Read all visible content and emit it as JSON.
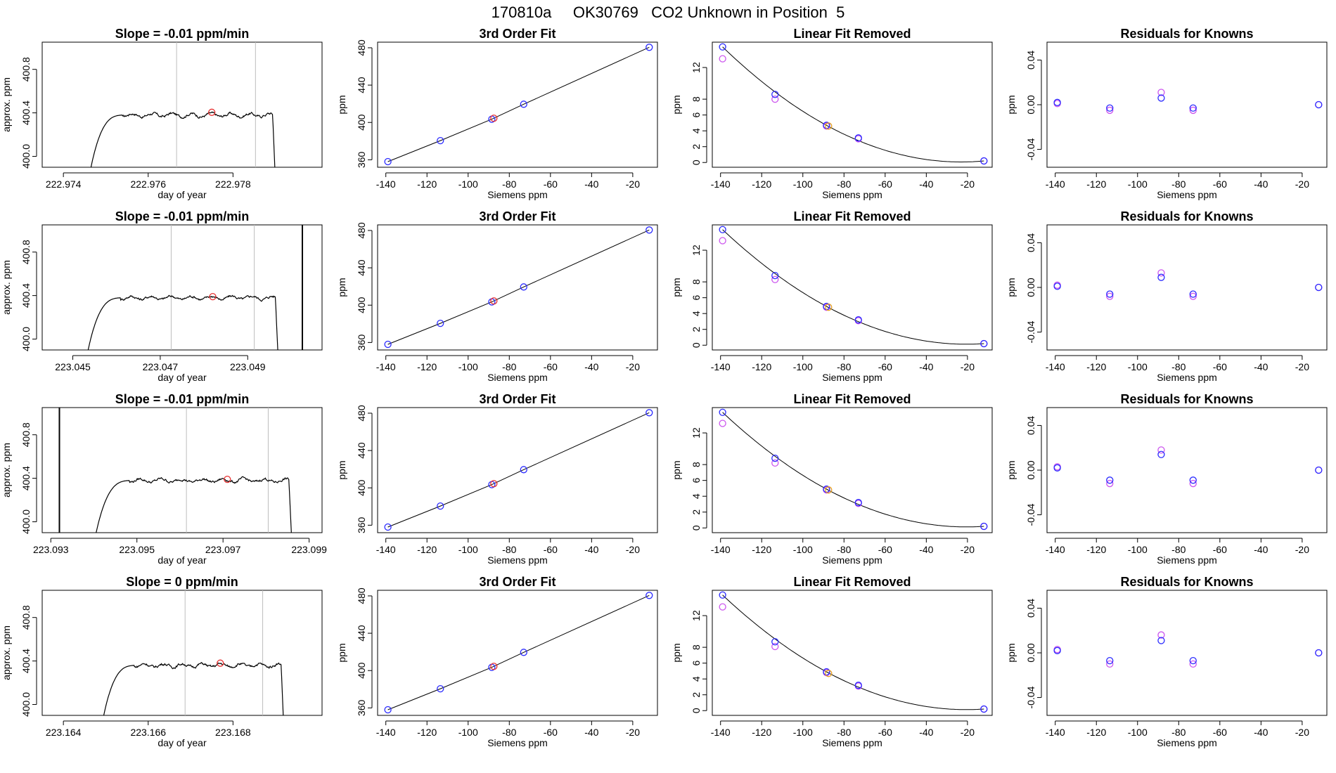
{
  "page": {
    "title": "170810a     OK30769   CO2 Unknown in Position  5"
  },
  "colors": {
    "trace": "#000000",
    "fit_line": "#000000",
    "gray_marker": "#bdbdbd",
    "known_blue": "#2b2bff",
    "known_magenta": "#cc55ee",
    "unknown_red": "#e83030",
    "unknown_orange": "#e8a020"
  },
  "rows": [
    {
      "trace": {
        "title": "Slope =  -0.01  ppm/min",
        "xlabel": "day of year",
        "ylabel": "approx. ppm",
        "xlim": [
          222.9735,
          222.9801
        ],
        "ylim": [
          399.9,
          401.05
        ],
        "xticks": [
          222.974,
          222.976,
          222.978
        ],
        "xtick_labels": [
          "222.974",
          "222.976",
          "222.978"
        ],
        "yticks": [
          400.0,
          400.4,
          400.8
        ],
        "ytick_labels": [
          "400.0",
          "400.4",
          "400.8"
        ],
        "start": 222.9746,
        "end": 222.979,
        "plateau": 400.38,
        "gray_lines": [
          222.97667,
          222.97853
        ],
        "black_lines": [],
        "marker": {
          "x": 222.9775,
          "y": 400.405
        }
      },
      "fit": {
        "title": "3rd Order Fit",
        "xlabel": "Siemens ppm",
        "ylabel": "ppm",
        "xlim": [
          -144,
          -8
        ],
        "ylim": [
          352,
          486
        ],
        "xticks": [
          -140,
          -120,
          -100,
          -80,
          -60,
          -40,
          -20
        ],
        "xtick_labels": [
          "-140",
          "-120",
          "-100",
          "-80",
          "-60",
          "-40",
          "-20"
        ],
        "yticks": [
          360,
          400,
          440,
          480
        ],
        "ytick_labels": [
          "360",
          "400",
          "440",
          "480"
        ],
        "known_x": [
          -139,
          -113.5,
          -88.5,
          -73,
          -12
        ],
        "known_y": [
          358,
          380.5,
          403.5,
          419.5,
          480.5
        ],
        "unknown": {
          "x": -87.5,
          "y": 404.5
        }
      },
      "lin": {
        "title": "Linear Fit Removed",
        "xlabel": "Siemens ppm",
        "ylabel": "ppm",
        "xlim": [
          -144,
          -8
        ],
        "ylim": [
          -0.6,
          15.2
        ],
        "xticks": [
          -140,
          -120,
          -100,
          -80,
          -60,
          -40,
          -20
        ],
        "xtick_labels": [
          "-140",
          "-120",
          "-100",
          "-80",
          "-60",
          "-40",
          "-20"
        ],
        "yticks": [
          0,
          2,
          4,
          6,
          8,
          12
        ],
        "ytick_labels": [
          "0",
          "2",
          "4",
          "6",
          "8",
          "12"
        ],
        "known_x": [
          -139,
          -113.5,
          -88.5,
          -73,
          -12
        ],
        "blue_y": [
          14.6,
          8.6,
          4.7,
          3.1,
          0.2
        ],
        "magenta_y": [
          13.1,
          8.0,
          4.6,
          3.0,
          0.2
        ],
        "unknown": {
          "x": -87.5,
          "y": 4.6
        }
      },
      "res": {
        "title": "Residuals for Knowns",
        "xlabel": "Siemens ppm",
        "ylabel": "ppm",
        "xlim": [
          -144,
          -8
        ],
        "ylim": [
          -0.056,
          0.056
        ],
        "xticks": [
          -140,
          -120,
          -100,
          -80,
          -60,
          -40,
          -20
        ],
        "xtick_labels": [
          "-140",
          "-120",
          "-100",
          "-80",
          "-60",
          "-40",
          "-20"
        ],
        "yticks": [
          -0.04,
          0.0,
          0.04
        ],
        "ytick_labels": [
          "-0.04",
          "0.00",
          "0.04"
        ],
        "known_x": [
          -139,
          -113.5,
          -88.5,
          -73,
          -12
        ],
        "blue_y": [
          0.002,
          -0.003,
          0.006,
          -0.003,
          0.0
        ],
        "magenta_y": [
          0.001,
          -0.005,
          0.011,
          -0.005,
          0.0
        ]
      }
    },
    {
      "trace": {
        "title": "Slope =  -0.01  ppm/min",
        "xlabel": "day of year",
        "ylabel": "approx. ppm",
        "xlim": [
          223.0443,
          223.0507
        ],
        "ylim": [
          399.9,
          401.05
        ],
        "xticks": [
          223.045,
          223.047,
          223.049
        ],
        "xtick_labels": [
          "223.045",
          "223.047",
          "223.049"
        ],
        "yticks": [
          400.0,
          400.4,
          400.8
        ],
        "ytick_labels": [
          "400.0",
          "400.4",
          "400.8"
        ],
        "start": 223.0453,
        "end": 223.0497,
        "plateau": 400.38,
        "gray_lines": [
          223.04725,
          223.04915
        ],
        "black_lines": [
          223.05025
        ],
        "marker": {
          "x": 223.0482,
          "y": 400.39
        }
      },
      "fit": {
        "title": "3rd Order Fit",
        "xlabel": "Siemens ppm",
        "ylabel": "ppm",
        "xlim": [
          -144,
          -8
        ],
        "ylim": [
          352,
          486
        ],
        "xticks": [
          -140,
          -120,
          -100,
          -80,
          -60,
          -40,
          -20
        ],
        "xtick_labels": [
          "-140",
          "-120",
          "-100",
          "-80",
          "-60",
          "-40",
          "-20"
        ],
        "yticks": [
          360,
          400,
          440,
          480
        ],
        "ytick_labels": [
          "360",
          "400",
          "440",
          "480"
        ],
        "known_x": [
          -139,
          -113.5,
          -88.5,
          -73,
          -12
        ],
        "known_y": [
          358,
          380.5,
          403.5,
          419.5,
          480.5
        ],
        "unknown": {
          "x": -87.5,
          "y": 404.5
        }
      },
      "lin": {
        "title": "Linear Fit Removed",
        "xlabel": "Siemens ppm",
        "ylabel": "ppm",
        "xlim": [
          -144,
          -8
        ],
        "ylim": [
          -0.6,
          15.2
        ],
        "xticks": [
          -140,
          -120,
          -100,
          -80,
          -60,
          -40,
          -20
        ],
        "xtick_labels": [
          "-140",
          "-120",
          "-100",
          "-80",
          "-60",
          "-40",
          "-20"
        ],
        "yticks": [
          0,
          2,
          4,
          6,
          8,
          12
        ],
        "ytick_labels": [
          "0",
          "2",
          "4",
          "6",
          "8",
          "12"
        ],
        "known_x": [
          -139,
          -113.5,
          -88.5,
          -73,
          -12
        ],
        "blue_y": [
          14.6,
          8.8,
          4.9,
          3.2,
          0.2
        ],
        "magenta_y": [
          13.2,
          8.3,
          4.8,
          3.1,
          0.2
        ],
        "unknown": {
          "x": -87.5,
          "y": 4.8
        }
      },
      "res": {
        "title": "Residuals for Knowns",
        "xlabel": "Siemens ppm",
        "ylabel": "ppm",
        "xlim": [
          -144,
          -8
        ],
        "ylim": [
          -0.056,
          0.056
        ],
        "xticks": [
          -140,
          -120,
          -100,
          -80,
          -60,
          -40,
          -20
        ],
        "xtick_labels": [
          "-140",
          "-120",
          "-100",
          "-80",
          "-60",
          "-40",
          "-20"
        ],
        "yticks": [
          -0.04,
          0.0,
          0.04
        ],
        "ytick_labels": [
          "-0.04",
          "0.00",
          "0.04"
        ],
        "known_x": [
          -139,
          -113.5,
          -88.5,
          -73,
          -12
        ],
        "blue_y": [
          0.001,
          -0.006,
          0.009,
          -0.006,
          0.0
        ],
        "magenta_y": [
          0.002,
          -0.008,
          0.013,
          -0.008,
          0.0
        ]
      }
    },
    {
      "trace": {
        "title": "Slope =  -0.01  ppm/min",
        "xlabel": "day of year",
        "ylabel": "approx. ppm",
        "xlim": [
          223.0928,
          223.0993
        ],
        "ylim": [
          399.9,
          401.05
        ],
        "xticks": [
          223.093,
          223.095,
          223.097,
          223.099
        ],
        "xtick_labels": [
          "223.093",
          "223.095",
          "223.097",
          "223.099"
        ],
        "yticks": [
          400.0,
          400.4,
          400.8
        ],
        "ytick_labels": [
          "400.0",
          "400.4",
          "400.8"
        ],
        "start": 223.094,
        "end": 223.0986,
        "plateau": 400.38,
        "gray_lines": [
          223.09615,
          223.09805
        ],
        "black_lines": [
          223.0932
        ],
        "marker": {
          "x": 223.0971,
          "y": 400.39
        }
      },
      "fit": {
        "title": "3rd Order Fit",
        "xlabel": "Siemens ppm",
        "ylabel": "ppm",
        "xlim": [
          -144,
          -8
        ],
        "ylim": [
          352,
          486
        ],
        "xticks": [
          -140,
          -120,
          -100,
          -80,
          -60,
          -40,
          -20
        ],
        "xtick_labels": [
          "-140",
          "-120",
          "-100",
          "-80",
          "-60",
          "-40",
          "-20"
        ],
        "yticks": [
          360,
          400,
          440,
          480
        ],
        "ytick_labels": [
          "360",
          "400",
          "440",
          "480"
        ],
        "known_x": [
          -139,
          -113.5,
          -88.5,
          -73,
          -12
        ],
        "known_y": [
          358,
          380.5,
          403.5,
          419.5,
          480.5
        ],
        "unknown": {
          "x": -87.5,
          "y": 404.5
        }
      },
      "lin": {
        "title": "Linear Fit Removed",
        "xlabel": "Siemens ppm",
        "ylabel": "ppm",
        "xlim": [
          -144,
          -8
        ],
        "ylim": [
          -0.6,
          15.2
        ],
        "xticks": [
          -140,
          -120,
          -100,
          -80,
          -60,
          -40,
          -20
        ],
        "xtick_labels": [
          "-140",
          "-120",
          "-100",
          "-80",
          "-60",
          "-40",
          "-20"
        ],
        "yticks": [
          0,
          2,
          4,
          6,
          8,
          12
        ],
        "ytick_labels": [
          "0",
          "2",
          "4",
          "6",
          "8",
          "12"
        ],
        "known_x": [
          -139,
          -113.5,
          -88.5,
          -73,
          -12
        ],
        "blue_y": [
          14.6,
          8.8,
          4.9,
          3.2,
          0.2
        ],
        "magenta_y": [
          13.2,
          8.2,
          4.8,
          3.1,
          0.2
        ],
        "unknown": {
          "x": -87.5,
          "y": 4.8
        }
      },
      "res": {
        "title": "Residuals for Knowns",
        "xlabel": "Siemens ppm",
        "ylabel": "ppm",
        "xlim": [
          -144,
          -8
        ],
        "ylim": [
          -0.056,
          0.056
        ],
        "xticks": [
          -140,
          -120,
          -100,
          -80,
          -60,
          -40,
          -20
        ],
        "xtick_labels": [
          "-140",
          "-120",
          "-100",
          "-80",
          "-60",
          "-40",
          "-20"
        ],
        "yticks": [
          -0.04,
          0.0,
          0.04
        ],
        "ytick_labels": [
          "-0.04",
          "0.00",
          "0.04"
        ],
        "known_x": [
          -139,
          -113.5,
          -88.5,
          -73,
          -12
        ],
        "blue_y": [
          0.002,
          -0.009,
          0.014,
          -0.009,
          0.0
        ],
        "magenta_y": [
          0.003,
          -0.012,
          0.018,
          -0.012,
          0.0
        ]
      }
    },
    {
      "trace": {
        "title": "Slope =  0  ppm/min",
        "xlabel": "day of year",
        "ylabel": "approx. ppm",
        "xlim": [
          223.1635,
          223.1701
        ],
        "ylim": [
          399.9,
          401.05
        ],
        "xticks": [
          223.164,
          223.166,
          223.168
        ],
        "xtick_labels": [
          "223.164",
          "223.166",
          "223.168"
        ],
        "yticks": [
          400.0,
          400.4,
          400.8
        ],
        "ytick_labels": [
          "400.0",
          "400.4",
          "400.8"
        ],
        "start": 223.1649,
        "end": 223.1692,
        "plateau": 400.36,
        "gray_lines": [
          223.16687,
          223.1687
        ],
        "black_lines": [],
        "marker": {
          "x": 223.1677,
          "y": 400.38
        }
      },
      "fit": {
        "title": "3rd Order Fit",
        "xlabel": "Siemens ppm",
        "ylabel": "ppm",
        "xlim": [
          -144,
          -8
        ],
        "ylim": [
          352,
          486
        ],
        "xticks": [
          -140,
          -120,
          -100,
          -80,
          -60,
          -40,
          -20
        ],
        "xtick_labels": [
          "-140",
          "-120",
          "-100",
          "-80",
          "-60",
          "-40",
          "-20"
        ],
        "yticks": [
          360,
          400,
          440,
          480
        ],
        "ytick_labels": [
          "360",
          "400",
          "440",
          "480"
        ],
        "known_x": [
          -139,
          -113.5,
          -88.5,
          -73,
          -12
        ],
        "known_y": [
          358,
          380.5,
          403.5,
          419.5,
          480.5
        ],
        "unknown": {
          "x": -87.5,
          "y": 404.5
        }
      },
      "lin": {
        "title": "Linear Fit Removed",
        "xlabel": "Siemens ppm",
        "ylabel": "ppm",
        "xlim": [
          -144,
          -8
        ],
        "ylim": [
          -0.6,
          15.2
        ],
        "xticks": [
          -140,
          -120,
          -100,
          -80,
          -60,
          -40,
          -20
        ],
        "xtick_labels": [
          "-140",
          "-120",
          "-100",
          "-80",
          "-60",
          "-40",
          "-20"
        ],
        "yticks": [
          0,
          2,
          4,
          6,
          8,
          12
        ],
        "ytick_labels": [
          "0",
          "2",
          "4",
          "6",
          "8",
          "12"
        ],
        "known_x": [
          -139,
          -113.5,
          -88.5,
          -73,
          -12
        ],
        "blue_y": [
          14.6,
          8.7,
          4.9,
          3.2,
          0.2
        ],
        "magenta_y": [
          13.1,
          8.1,
          4.8,
          3.1,
          0.2
        ],
        "unknown": {
          "x": -87.5,
          "y": 4.7
        }
      },
      "res": {
        "title": "Residuals for Knowns",
        "xlabel": "Siemens ppm",
        "ylabel": "ppm",
        "xlim": [
          -144,
          -8
        ],
        "ylim": [
          -0.056,
          0.056
        ],
        "xticks": [
          -140,
          -120,
          -100,
          -80,
          -60,
          -40,
          -20
        ],
        "xtick_labels": [
          "-140",
          "-120",
          "-100",
          "-80",
          "-60",
          "-40",
          "-20"
        ],
        "yticks": [
          -0.04,
          0.0,
          0.04
        ],
        "ytick_labels": [
          "-0.04",
          "0.00",
          "0.04"
        ],
        "known_x": [
          -139,
          -113.5,
          -88.5,
          -73,
          -12
        ],
        "blue_y": [
          0.002,
          -0.007,
          0.011,
          -0.007,
          0.0
        ],
        "magenta_y": [
          0.003,
          -0.01,
          0.016,
          -0.01,
          0.0
        ]
      }
    }
  ]
}
